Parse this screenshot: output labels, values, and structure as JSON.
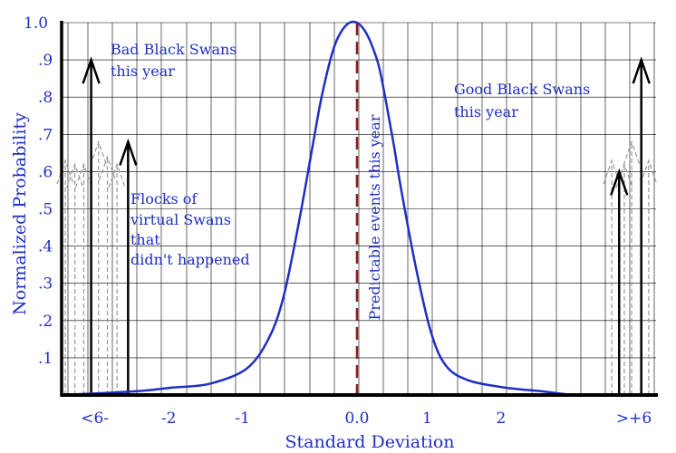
{
  "chart_data": {
    "type": "line",
    "xlabel": "Standard Deviation",
    "ylabel": "Normalized Probability",
    "xlim": [
      -4.0,
      4.05
    ],
    "ylim": [
      0.0,
      1.0
    ],
    "x_ticks": [
      {
        "value": -3.55,
        "label": "<6-"
      },
      {
        "value": -2.55,
        "label": "-2"
      },
      {
        "value": -1.55,
        "label": "-1"
      },
      {
        "value": 0.0,
        "label": "0.0"
      },
      {
        "value": 0.95,
        "label": "1"
      },
      {
        "value": 1.95,
        "label": "2"
      },
      {
        "value": 3.75,
        "label": ">+6"
      }
    ],
    "y_ticks": [
      {
        "value": 0.1,
        "label": ".1"
      },
      {
        "value": 0.2,
        "label": ".2"
      },
      {
        "value": 0.3,
        "label": ".3"
      },
      {
        "value": 0.4,
        "label": ".4"
      },
      {
        "value": 0.5,
        "label": ".5"
      },
      {
        "value": 0.6,
        "label": ".6"
      },
      {
        "value": 0.7,
        "label": ".7"
      },
      {
        "value": 0.8,
        "label": ".8"
      },
      {
        "value": 0.9,
        "label": ".9"
      },
      {
        "value": 1.0,
        "label": "1.0"
      }
    ],
    "grid": true,
    "series": [
      {
        "color": "#1f2fc4",
        "x": [
          -4.0,
          -3.0,
          -2.5,
          -2.0,
          -1.5,
          -1.2,
          -1.0,
          -0.8,
          -0.6,
          -0.5,
          -0.4,
          -0.3,
          -0.2,
          -0.1,
          0.0,
          0.1,
          0.2,
          0.3,
          0.4,
          0.5,
          0.6,
          0.8,
          1.0,
          1.2,
          1.5,
          2.0,
          2.5,
          3.0,
          4.0
        ],
        "y": [
          0.0,
          0.01,
          0.02,
          0.03,
          0.07,
          0.15,
          0.26,
          0.45,
          0.67,
          0.78,
          0.87,
          0.94,
          0.98,
          1.0,
          1.0,
          0.98,
          0.94,
          0.88,
          0.78,
          0.67,
          0.55,
          0.34,
          0.17,
          0.08,
          0.04,
          0.02,
          0.01,
          0.0,
          0.0
        ]
      }
    ],
    "mean_line": {
      "x": 0.0,
      "color": "#8b1a1a",
      "style": "dashed",
      "label": "Predictable events this year"
    },
    "solid_arrows": [
      {
        "x": -3.6,
        "y_top": 0.9
      },
      {
        "x": -3.1,
        "y_top": 0.68
      },
      {
        "x": 3.55,
        "y_top": 0.6
      },
      {
        "x": 3.85,
        "y_top": 0.9
      }
    ],
    "dashed_arrows": [
      {
        "x": -3.95,
        "y_top": 0.63
      },
      {
        "x": -3.82,
        "y_top": 0.62
      },
      {
        "x": -3.7,
        "y_top": 0.62
      },
      {
        "x": -3.5,
        "y_top": 0.68
      },
      {
        "x": -3.38,
        "y_top": 0.64
      },
      {
        "x": -3.25,
        "y_top": 0.62
      },
      {
        "x": 3.45,
        "y_top": 0.63
      },
      {
        "x": 3.62,
        "y_top": 0.62
      },
      {
        "x": 3.72,
        "y_top": 0.68
      },
      {
        "x": 3.95,
        "y_top": 0.63
      }
    ],
    "annotations": {
      "bad_black_swans": [
        "Bad Black Swans",
        "this year"
      ],
      "good_black_swans": [
        "Good Black Swans",
        "this year"
      ],
      "virtual_swans": [
        "Flocks of",
        "virtual Swans",
        "that",
        "didn't happened"
      ]
    }
  },
  "colors": {
    "curve": "#1f2fc4",
    "text": "#1f2fc4",
    "mean_line": "#8b1a1a",
    "arrow": "#000000",
    "dashed_arrow": "#9a9a9a",
    "grid": "#000000"
  }
}
